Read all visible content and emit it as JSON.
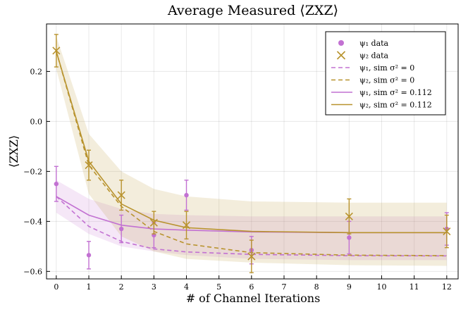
{
  "chart_data": {
    "type": "line",
    "title": "Average Measured ⟨ZXZ⟩",
    "xlabel": "# of Channel Iterations",
    "ylabel": "⟨ZXZ⟩",
    "xlim": [
      -0.3,
      12.35
    ],
    "ylim": [
      -0.63,
      0.39
    ],
    "xticks": [
      0,
      1,
      2,
      3,
      4,
      5,
      6,
      7,
      8,
      9,
      10,
      11,
      12
    ],
    "yticks": [
      -0.6,
      -0.4,
      -0.2,
      0.0,
      0.2
    ],
    "ytick_labels": [
      "−0.6",
      "−0.4",
      "−0.2",
      "0.0",
      "0.2"
    ],
    "grid": true,
    "legend_position": "top-right",
    "colors": {
      "psi1": "#c271d2",
      "psi2": "#b8932e"
    },
    "legend": [
      {
        "kind": "scatter-dot",
        "series": "psi1",
        "label": "ψ₁ data"
      },
      {
        "kind": "scatter-x",
        "series": "psi2",
        "label": "ψ₂ data"
      },
      {
        "kind": "dashed",
        "series": "psi1",
        "label": "ψ₁, sim σ² = 0"
      },
      {
        "kind": "dashed",
        "series": "psi2",
        "label": "ψ₂, sim σ² = 0"
      },
      {
        "kind": "solid",
        "series": "psi1",
        "label": "ψ₁, sim σ² = 0.112"
      },
      {
        "kind": "solid",
        "series": "psi2",
        "label": "ψ₂, sim σ² = 0.112"
      }
    ],
    "data_series": [
      {
        "name": "ψ₁ data",
        "series": "psi1",
        "marker": "dot",
        "x": [
          0,
          1,
          2,
          3,
          4,
          6,
          9,
          12
        ],
        "y": [
          -0.25,
          -0.535,
          -0.43,
          -0.455,
          -0.295,
          -0.515,
          -0.465,
          -0.43
        ],
        "err": [
          0.07,
          0.055,
          0.055,
          0.05,
          0.06,
          0.055,
          0.065,
          0.065
        ]
      },
      {
        "name": "ψ₂ data",
        "series": "psi2",
        "marker": "x",
        "x": [
          0,
          1,
          2,
          3,
          4,
          6,
          9,
          12
        ],
        "y": [
          0.283,
          -0.175,
          -0.295,
          -0.405,
          -0.415,
          -0.54,
          -0.38,
          -0.44
        ],
        "err": [
          0.065,
          0.06,
          0.06,
          0.045,
          0.055,
          0.065,
          0.07,
          0.065
        ]
      }
    ],
    "sim_series": [
      {
        "name": "ψ₁, sim σ² = 0",
        "series": "psi1",
        "style": "dashed",
        "x": [
          0,
          1,
          2,
          3,
          4,
          6,
          9,
          12
        ],
        "y": [
          -0.3,
          -0.42,
          -0.48,
          -0.51,
          -0.522,
          -0.532,
          -0.537,
          -0.538
        ]
      },
      {
        "name": "ψ₂, sim σ² = 0",
        "series": "psi2",
        "style": "dashed",
        "x": [
          0,
          1,
          2,
          3,
          4,
          6,
          9,
          12
        ],
        "y": [
          0.28,
          -0.175,
          -0.34,
          -0.44,
          -0.49,
          -0.525,
          -0.535,
          -0.537
        ]
      },
      {
        "name": "ψ₁, sim σ² = 0.112",
        "series": "psi1",
        "style": "solid",
        "x": [
          0,
          1,
          2,
          3,
          4,
          6,
          9,
          12
        ],
        "y": [
          -0.3,
          -0.375,
          -0.415,
          -0.43,
          -0.435,
          -0.442,
          -0.445,
          -0.445
        ],
        "band_lower": [
          -0.365,
          -0.45,
          -0.5,
          -0.52,
          -0.535,
          -0.55,
          -0.555,
          -0.555
        ],
        "band_upper": [
          -0.235,
          -0.31,
          -0.35,
          -0.37,
          -0.375,
          -0.38,
          -0.38,
          -0.38
        ]
      },
      {
        "name": "ψ₂, sim σ² = 0.112",
        "series": "psi2",
        "style": "solid",
        "x": [
          0,
          1,
          2,
          3,
          4,
          6,
          9,
          12
        ],
        "y": [
          0.28,
          -0.16,
          -0.33,
          -0.395,
          -0.425,
          -0.44,
          -0.445,
          -0.445
        ],
        "band_lower": [
          0.21,
          -0.29,
          -0.46,
          -0.52,
          -0.55,
          -0.565,
          -0.575,
          -0.578
        ],
        "band_upper": [
          0.34,
          -0.05,
          -0.2,
          -0.27,
          -0.3,
          -0.32,
          -0.325,
          -0.325
        ]
      }
    ]
  }
}
